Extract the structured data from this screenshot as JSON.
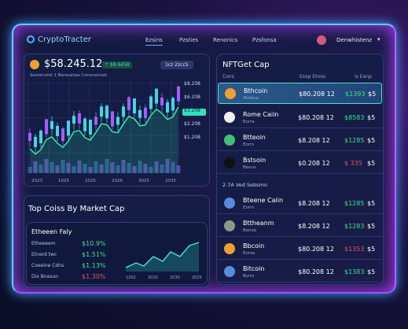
{
  "header": {
    "logo": "CryptoTracter",
    "nav": [
      "Ezsins",
      "Pzsties",
      "Renonics",
      "Pzsfonsa"
    ],
    "user": "Denwhistenz"
  },
  "price_panel": {
    "price": "$58.245.12",
    "badge": "↑ $8.6458",
    "subtitle": "Sesrenstid 1 Beneatiae Cenonsinod",
    "range": "1cz 2zcc5",
    "price_labels": [
      "$8.208",
      "$6.208",
      "$3.208",
      "$2.208",
      "$1.208"
    ],
    "time_labels": [
      "2023",
      "1025",
      "2025",
      "2026",
      "3025",
      "2035"
    ]
  },
  "top_coins": {
    "title": "Top Coiss By Market Cap",
    "subtitle": "Etheeen Faly",
    "rows": [
      {
        "name": "Etheeeem",
        "value": "$10.9%",
        "color": "#3fe08a"
      },
      {
        "name": "Etnerd twc",
        "value": "$1.51%",
        "color": "#3fe08a"
      },
      {
        "name": "Coeeine Cdns",
        "value": "$1.13%",
        "color": "#3fe08a"
      },
      {
        "name": "Dix Bnasun",
        "value": "$1.30%",
        "color": "#e0506a"
      }
    ],
    "time_labels": [
      "1202",
      "2020",
      "2030",
      "2025"
    ]
  },
  "market": {
    "title": "NFTGet Cap",
    "columns": [
      "Cons",
      "Esop Etnos",
      "Is Eenp"
    ],
    "section": "2.7A Ved Sebsmn",
    "rows": [
      {
        "name": "Bthcoin",
        "sub": "Botbsa",
        "price": "$80.208 12",
        "change": "$1393",
        "cap": "$5",
        "color": "#3fe08a"
      },
      {
        "name": "Rome Caiin",
        "sub": "Eorra",
        "price": "$80.208 12",
        "change": "$8583",
        "cap": "$5",
        "color": "#3fe08a"
      },
      {
        "name": "Btteoin",
        "sub": "Eorrs",
        "price": "$8.208 12",
        "change": "$1285",
        "cap": "$5",
        "color": "#3fe08a"
      },
      {
        "name": "Bstsoin",
        "sub": "Beeus",
        "price": "$0.208 12",
        "change": "$ 335",
        "cap": "$5",
        "color": "#e0506a"
      }
    ],
    "rows2": [
      {
        "name": "Bteene Caiin",
        "sub": "Eorrs",
        "price": "$8.208 12",
        "change": "$1285",
        "cap": "$5",
        "color": "#3fe08a"
      },
      {
        "name": "Bttheanm",
        "sub": "Bonsa",
        "price": "$8.208 12",
        "change": "$1283",
        "cap": "$5",
        "color": "#3fe08a"
      },
      {
        "name": "Bbcoin",
        "sub": "Eorsa",
        "price": "$80.208 12",
        "change": "$1353",
        "cap": "$5",
        "color": "#e0506a"
      },
      {
        "name": "Bitcoin",
        "sub": "Bsrro",
        "price": "$80.208 12",
        "change": "$1383",
        "cap": "$5",
        "color": "#3fe08a"
      }
    ]
  }
}
